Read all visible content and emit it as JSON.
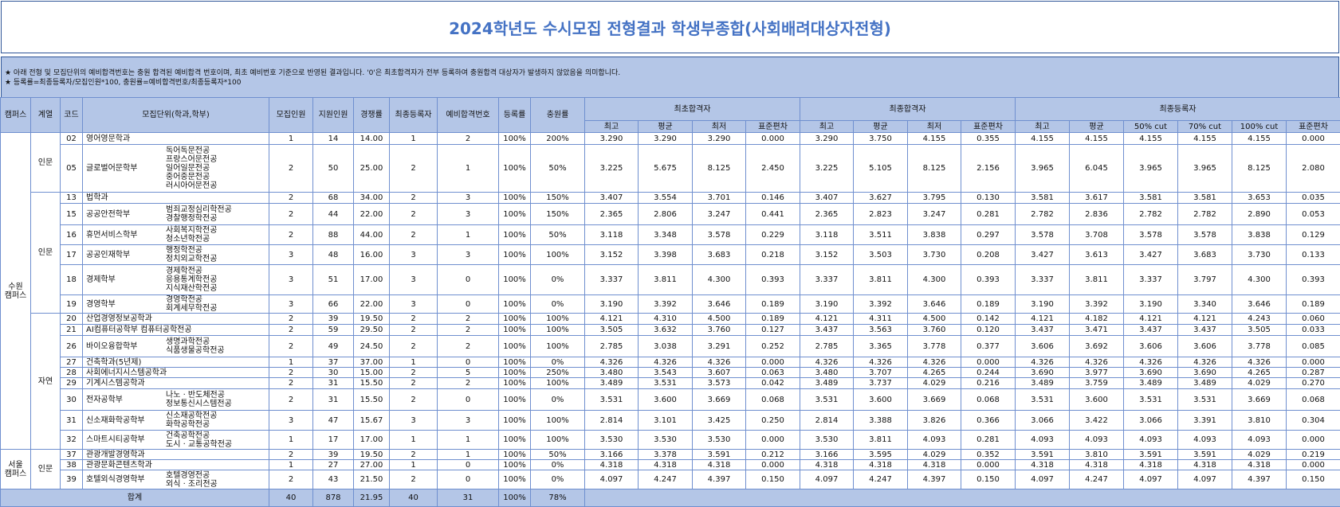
{
  "title": "2024학년도 수시모집 전형결과 학생부종합(사회배려대상자전형)",
  "notes": [
    "★ 아래 전형 및 모집단위의 예비합격번호는 충원 합격된 예비합격 번호이며, 최초 예비번호 기준으로 반영된 결과입니다. '0'은 최초합격자가 전부 등록하여 충원합격 대상자가 발생하지 않았음을 의미합니다.",
    "★ 등록률=최종등록자/모집인원*100, 충원률=예비합격번호/최종등록자*100"
  ],
  "table": {
    "columns": [
      "캠퍼스",
      "계열",
      "코드",
      "모집단위(학과,학부)",
      "모집인원",
      "지원인원",
      "경쟁률",
      "최종등록자",
      "예비합격번호",
      "등록률",
      "충원률"
    ],
    "groups": [
      {
        "name": "최초합격자",
        "subs": [
          "최고",
          "평균",
          "최저",
          "표준편차"
        ]
      },
      {
        "name": "최종합격자",
        "subs": [
          "최고",
          "평균",
          "최저",
          "표준편차"
        ]
      },
      {
        "name": "최종등록자",
        "subs": [
          "최고",
          "평균",
          "50% cut",
          "70% cut",
          "100% cut",
          "표준편차"
        ]
      }
    ],
    "campuses": [
      {
        "name": "수원 캠퍼스",
        "tracks": [
          {
            "name": "인문",
            "rows": [
              {
                "code": "02",
                "dept": "영어영문학과",
                "majors": [],
                "cells": [
                  "1",
                  "14",
                  "14.00",
                  "1",
                  "2",
                  "100%",
                  "200%",
                  "3.290",
                  "3.290",
                  "3.290",
                  "0.000",
                  "3.290",
                  "3.750",
                  "4.155",
                  "0.355",
                  "4.155",
                  "4.155",
                  "4.155",
                  "4.155",
                  "4.155",
                  "0.000"
                ]
              },
              {
                "code": "05",
                "dept": "글로벌어문학부",
                "majors": [
                  "독어독문전공",
                  "프랑스어문전공",
                  "일어일문전공",
                  "중어중문전공",
                  "러시아어문전공"
                ],
                "cells": [
                  "2",
                  "50",
                  "25.00",
                  "2",
                  "1",
                  "100%",
                  "50%",
                  "3.225",
                  "5.675",
                  "8.125",
                  "2.450",
                  "3.225",
                  "5.105",
                  "8.125",
                  "2.156",
                  "3.965",
                  "6.045",
                  "3.965",
                  "3.965",
                  "8.125",
                  "2.080"
                ]
              }
            ]
          },
          {
            "name": "인문",
            "rows": [
              {
                "code": "13",
                "dept": "법학과",
                "majors": [],
                "cells": [
                  "2",
                  "68",
                  "34.00",
                  "2",
                  "3",
                  "100%",
                  "150%",
                  "3.407",
                  "3.554",
                  "3.701",
                  "0.146",
                  "3.407",
                  "3.627",
                  "3.795",
                  "0.130",
                  "3.581",
                  "3.617",
                  "3.581",
                  "3.581",
                  "3.653",
                  "0.035"
                ]
              },
              {
                "code": "15",
                "dept": "공공안전학부",
                "majors": [
                  "범죄교정심리학전공",
                  "경찰행정학전공"
                ],
                "cells": [
                  "2",
                  "44",
                  "22.00",
                  "2",
                  "3",
                  "100%",
                  "150%",
                  "2.365",
                  "2.806",
                  "3.247",
                  "0.441",
                  "2.365",
                  "2.823",
                  "3.247",
                  "0.281",
                  "2.782",
                  "2.836",
                  "2.782",
                  "2.782",
                  "2.890",
                  "0.053"
                ]
              },
              {
                "code": "16",
                "dept": "휴먼서비스학부",
                "majors": [
                  "사회복지학전공",
                  "청소년학전공"
                ],
                "cells": [
                  "2",
                  "88",
                  "44.00",
                  "2",
                  "1",
                  "100%",
                  "50%",
                  "3.118",
                  "3.348",
                  "3.578",
                  "0.229",
                  "3.118",
                  "3.511",
                  "3.838",
                  "0.297",
                  "3.578",
                  "3.708",
                  "3.578",
                  "3.578",
                  "3.838",
                  "0.129"
                ]
              },
              {
                "code": "17",
                "dept": "공공인재학부",
                "majors": [
                  "행정학전공",
                  "정치외교학전공"
                ],
                "cells": [
                  "3",
                  "48",
                  "16.00",
                  "3",
                  "3",
                  "100%",
                  "100%",
                  "3.152",
                  "3.398",
                  "3.683",
                  "0.218",
                  "3.152",
                  "3.503",
                  "3.730",
                  "0.208",
                  "3.427",
                  "3.613",
                  "3.427",
                  "3.683",
                  "3.730",
                  "0.133"
                ]
              },
              {
                "code": "18",
                "dept": "경제학부",
                "majors": [
                  "경제학전공",
                  "응용통계학전공",
                  "지식재산학전공"
                ],
                "cells": [
                  "3",
                  "51",
                  "17.00",
                  "3",
                  "0",
                  "100%",
                  "0%",
                  "3.337",
                  "3.811",
                  "4.300",
                  "0.393",
                  "3.337",
                  "3.811",
                  "4.300",
                  "0.393",
                  "3.337",
                  "3.811",
                  "3.337",
                  "3.797",
                  "4.300",
                  "0.393"
                ]
              },
              {
                "code": "19",
                "dept": "경영학부",
                "majors": [
                  "경영학전공",
                  "회계세무학전공"
                ],
                "cells": [
                  "3",
                  "66",
                  "22.00",
                  "3",
                  "0",
                  "100%",
                  "0%",
                  "3.190",
                  "3.392",
                  "3.646",
                  "0.189",
                  "3.190",
                  "3.392",
                  "3.646",
                  "0.189",
                  "3.190",
                  "3.392",
                  "3.190",
                  "3.340",
                  "3.646",
                  "0.189"
                ]
              }
            ]
          },
          {
            "name": "자연",
            "rows": [
              {
                "code": "20",
                "dept": "산업경영정보공학과",
                "majors": [],
                "cells": [
                  "2",
                  "39",
                  "19.50",
                  "2",
                  "2",
                  "100%",
                  "100%",
                  "4.121",
                  "4.310",
                  "4.500",
                  "0.189",
                  "4.121",
                  "4.311",
                  "4.500",
                  "0.142",
                  "4.121",
                  "4.182",
                  "4.121",
                  "4.121",
                  "4.243",
                  "0.060"
                ]
              },
              {
                "code": "21",
                "dept": "AI컴퓨터공학부 컴퓨터공학전공",
                "majors": [],
                "cells": [
                  "2",
                  "59",
                  "29.50",
                  "2",
                  "2",
                  "100%",
                  "100%",
                  "3.505",
                  "3.632",
                  "3.760",
                  "0.127",
                  "3.437",
                  "3.563",
                  "3.760",
                  "0.120",
                  "3.437",
                  "3.471",
                  "3.437",
                  "3.437",
                  "3.505",
                  "0.033"
                ]
              },
              {
                "code": "26",
                "dept": "바이오융합학부",
                "majors": [
                  "생명과학전공",
                  "식품생물공학전공"
                ],
                "cells": [
                  "2",
                  "49",
                  "24.50",
                  "2",
                  "2",
                  "100%",
                  "100%",
                  "2.785",
                  "3.038",
                  "3.291",
                  "0.252",
                  "2.785",
                  "3.365",
                  "3.778",
                  "0.377",
                  "3.606",
                  "3.692",
                  "3.606",
                  "3.606",
                  "3.778",
                  "0.085"
                ]
              },
              {
                "code": "27",
                "dept": "건축학과(5년제)",
                "majors": [],
                "cells": [
                  "1",
                  "37",
                  "37.00",
                  "1",
                  "0",
                  "100%",
                  "0%",
                  "4.326",
                  "4.326",
                  "4.326",
                  "0.000",
                  "4.326",
                  "4.326",
                  "4.326",
                  "0.000",
                  "4.326",
                  "4.326",
                  "4.326",
                  "4.326",
                  "4.326",
                  "0.000"
                ]
              },
              {
                "code": "28",
                "dept": "사회에너지시스템공학과",
                "majors": [],
                "cells": [
                  "2",
                  "30",
                  "15.00",
                  "2",
                  "5",
                  "100%",
                  "250%",
                  "3.480",
                  "3.543",
                  "3.607",
                  "0.063",
                  "3.480",
                  "3.707",
                  "4.265",
                  "0.244",
                  "3.690",
                  "3.977",
                  "3.690",
                  "3.690",
                  "4.265",
                  "0.287"
                ]
              },
              {
                "code": "29",
                "dept": "기계시스템공학과",
                "majors": [],
                "cells": [
                  "2",
                  "31",
                  "15.50",
                  "2",
                  "2",
                  "100%",
                  "100%",
                  "3.489",
                  "3.531",
                  "3.573",
                  "0.042",
                  "3.489",
                  "3.737",
                  "4.029",
                  "0.216",
                  "3.489",
                  "3.759",
                  "3.489",
                  "3.489",
                  "4.029",
                  "0.270"
                ]
              },
              {
                "code": "30",
                "dept": "전자공학부",
                "majors": [
                  "나노 · 반도체전공",
                  "정보통신시스템전공"
                ],
                "cells": [
                  "2",
                  "31",
                  "15.50",
                  "2",
                  "0",
                  "100%",
                  "0%",
                  "3.531",
                  "3.600",
                  "3.669",
                  "0.068",
                  "3.531",
                  "3.600",
                  "3.669",
                  "0.068",
                  "3.531",
                  "3.600",
                  "3.531",
                  "3.531",
                  "3.669",
                  "0.068"
                ]
              },
              {
                "code": "31",
                "dept": "신소재화학공학부",
                "majors": [
                  "신소재공학전공",
                  "화학공학전공"
                ],
                "cells": [
                  "3",
                  "47",
                  "15.67",
                  "3",
                  "3",
                  "100%",
                  "100%",
                  "2.814",
                  "3.101",
                  "3.425",
                  "0.250",
                  "2.814",
                  "3.388",
                  "3.826",
                  "0.366",
                  "3.066",
                  "3.422",
                  "3.066",
                  "3.391",
                  "3.810",
                  "0.304"
                ]
              },
              {
                "code": "32",
                "dept": "스마트시티공학부",
                "majors": [
                  "건축공학전공",
                  "도시 · 교통공학전공"
                ],
                "cells": [
                  "1",
                  "17",
                  "17.00",
                  "1",
                  "1",
                  "100%",
                  "100%",
                  "3.530",
                  "3.530",
                  "3.530",
                  "0.000",
                  "3.530",
                  "3.811",
                  "4.093",
                  "0.281",
                  "4.093",
                  "4.093",
                  "4.093",
                  "4.093",
                  "4.093",
                  "0.000"
                ]
              }
            ]
          }
        ]
      },
      {
        "name": "서울 캠퍼스",
        "tracks": [
          {
            "name": "인문",
            "rows": [
              {
                "code": "37",
                "dept": "관광개발경영학과",
                "majors": [],
                "cells": [
                  "2",
                  "39",
                  "19.50",
                  "2",
                  "1",
                  "100%",
                  "50%",
                  "3.166",
                  "3.378",
                  "3.591",
                  "0.212",
                  "3.166",
                  "3.595",
                  "4.029",
                  "0.352",
                  "3.591",
                  "3.810",
                  "3.591",
                  "3.591",
                  "4.029",
                  "0.219"
                ]
              },
              {
                "code": "38",
                "dept": "관광문화콘텐츠학과",
                "majors": [],
                "cells": [
                  "1",
                  "27",
                  "27.00",
                  "1",
                  "0",
                  "100%",
                  "0%",
                  "4.318",
                  "4.318",
                  "4.318",
                  "0.000",
                  "4.318",
                  "4.318",
                  "4.318",
                  "0.000",
                  "4.318",
                  "4.318",
                  "4.318",
                  "4.318",
                  "4.318",
                  "0.000"
                ]
              },
              {
                "code": "39",
                "dept": "호텔외식경영학부",
                "majors": [
                  "호텔경영전공",
                  "외식 · 조리전공"
                ],
                "cells": [
                  "2",
                  "43",
                  "21.50",
                  "2",
                  "0",
                  "100%",
                  "0%",
                  "4.097",
                  "4.247",
                  "4.397",
                  "0.150",
                  "4.097",
                  "4.247",
                  "4.397",
                  "0.150",
                  "4.097",
                  "4.247",
                  "4.097",
                  "4.097",
                  "4.397",
                  "0.150"
                ]
              }
            ]
          }
        ]
      }
    ],
    "total": {
      "label": "합계",
      "cells": [
        "40",
        "878",
        "21.95",
        "40",
        "31",
        "100%",
        "78%"
      ]
    }
  }
}
